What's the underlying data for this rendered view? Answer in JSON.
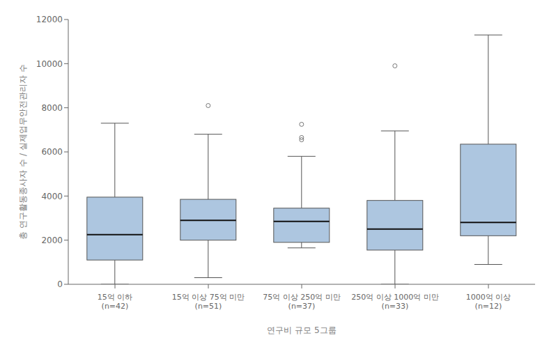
{
  "chart_data": {
    "type": "box",
    "categories": [
      "15억 이하\n(n=42)",
      "15억 이상 75억 미만\n(n=51)",
      "75억 이상 250억 미만\n(n=37)",
      "250억 이상 1000억 미만\n(n=33)",
      "1000억 이상\n(n=12)"
    ],
    "xlabel": "연구비 규모 5그룹",
    "ylabel": "총 연구활동종사자 수 / 실제업무안전관리자 수",
    "ylim": [
      0,
      12000
    ],
    "yticks": [
      0,
      2000,
      4000,
      6000,
      8000,
      10000,
      12000
    ],
    "boxes": [
      {
        "whislo": 0,
        "q1": 1100,
        "med": 2250,
        "q3": 3950,
        "whishi": 7300,
        "fliers": []
      },
      {
        "whislo": 300,
        "q1": 2000,
        "med": 2900,
        "q3": 3850,
        "whishi": 6800,
        "fliers": [
          8100
        ]
      },
      {
        "whislo": 1650,
        "q1": 1900,
        "med": 2850,
        "q3": 3450,
        "whishi": 5800,
        "fliers": [
          6550,
          6650,
          7250
        ]
      },
      {
        "whislo": 0,
        "q1": 1550,
        "med": 2500,
        "q3": 3800,
        "whishi": 6950,
        "fliers": [
          9900
        ]
      },
      {
        "whislo": 900,
        "q1": 2200,
        "med": 2800,
        "q3": 6350,
        "whishi": 11300,
        "fliers": []
      }
    ],
    "color": "#adc6e0",
    "grid": false
  }
}
